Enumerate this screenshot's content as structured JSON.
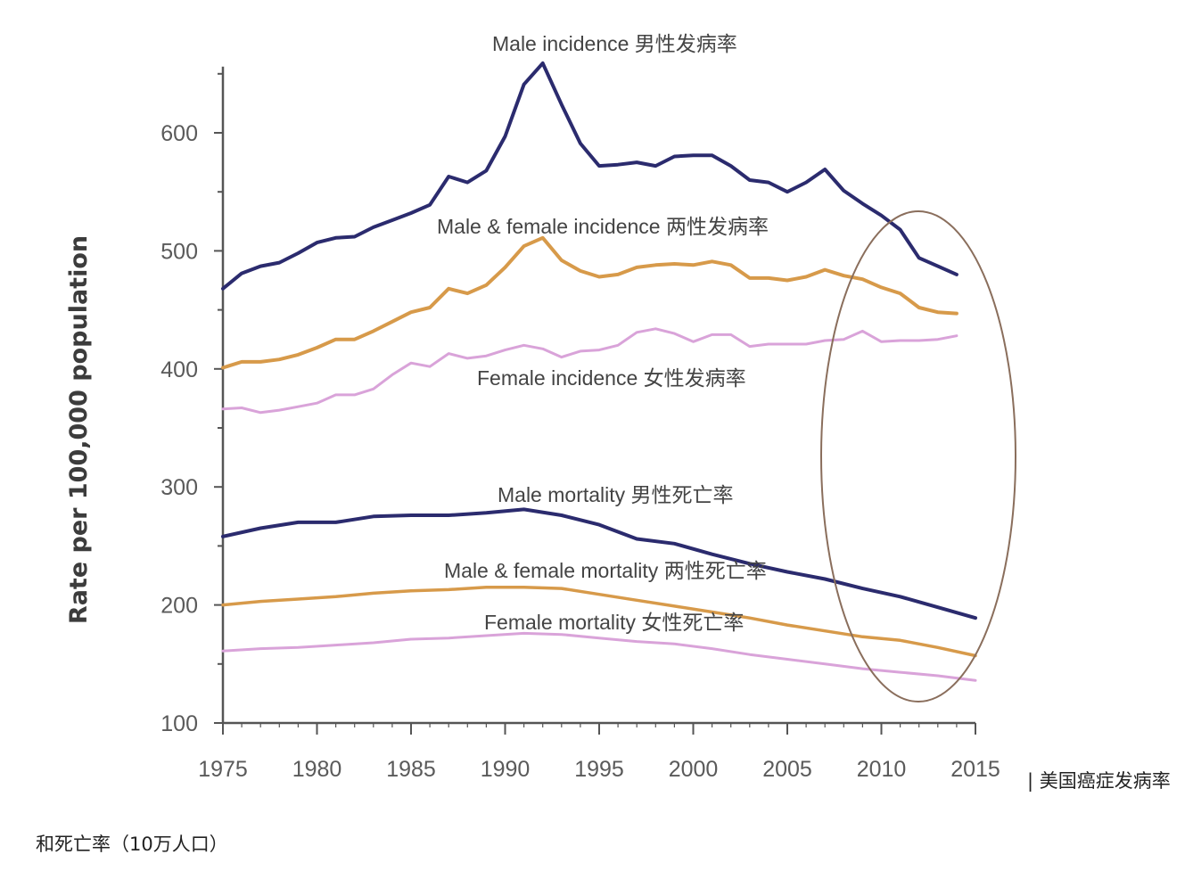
{
  "chart_data": {
    "type": "line",
    "title": "",
    "xlabel": "",
    "ylabel": "Rate per 100,000 population",
    "xlim": [
      1975,
      2015
    ],
    "ylim": [
      100,
      650
    ],
    "x_ticks": [
      "1975",
      "1980",
      "1985",
      "1990",
      "1995",
      "2000",
      "2005",
      "2010",
      "2015"
    ],
    "y_ticks": [
      "100",
      "200",
      "300",
      "400",
      "500",
      "600"
    ],
    "series": [
      {
        "name": "Male incidence 男性发病率",
        "color": "#2b2b6e",
        "x": [
          1975,
          1976,
          1977,
          1978,
          1979,
          1980,
          1981,
          1982,
          1983,
          1984,
          1985,
          1986,
          1987,
          1988,
          1989,
          1990,
          1991,
          1992,
          1993,
          1994,
          1995,
          1996,
          1997,
          1998,
          1999,
          2000,
          2001,
          2002,
          2003,
          2004,
          2005,
          2006,
          2007,
          2008,
          2009,
          2010,
          2011,
          2012,
          2013,
          2014
        ],
        "values": [
          468,
          481,
          487,
          490,
          498,
          507,
          511,
          512,
          520,
          526,
          532,
          539,
          563,
          558,
          568,
          597,
          641,
          659,
          624,
          591,
          572,
          573,
          575,
          572,
          580,
          581,
          581,
          572,
          560,
          558,
          550,
          558,
          569,
          551,
          540,
          530,
          518,
          494,
          487,
          480
        ]
      },
      {
        "name": "Male & female incidence 两性发病率",
        "color": "#d79a4a",
        "x": [
          1975,
          1976,
          1977,
          1978,
          1979,
          1980,
          1981,
          1982,
          1983,
          1984,
          1985,
          1986,
          1987,
          1988,
          1989,
          1990,
          1991,
          1992,
          1993,
          1994,
          1995,
          1996,
          1997,
          1998,
          1999,
          2000,
          2001,
          2002,
          2003,
          2004,
          2005,
          2006,
          2007,
          2008,
          2009,
          2010,
          2011,
          2012,
          2013,
          2014
        ],
        "values": [
          401,
          406,
          406,
          408,
          412,
          418,
          425,
          425,
          432,
          440,
          448,
          452,
          468,
          464,
          471,
          486,
          504,
          511,
          492,
          483,
          478,
          480,
          486,
          488,
          489,
          488,
          491,
          488,
          477,
          477,
          475,
          478,
          484,
          479,
          476,
          469,
          464,
          452,
          448,
          447
        ]
      },
      {
        "name": "Female incidence 女性发病率",
        "color": "#d9a3d9",
        "x": [
          1975,
          1976,
          1977,
          1978,
          1979,
          1980,
          1981,
          1982,
          1983,
          1984,
          1985,
          1986,
          1987,
          1988,
          1989,
          1990,
          1991,
          1992,
          1993,
          1994,
          1995,
          1996,
          1997,
          1998,
          1999,
          2000,
          2001,
          2002,
          2003,
          2004,
          2005,
          2006,
          2007,
          2008,
          2009,
          2010,
          2011,
          2012,
          2013,
          2014
        ],
        "values": [
          366,
          367,
          363,
          365,
          368,
          371,
          378,
          378,
          383,
          395,
          405,
          402,
          413,
          409,
          411,
          416,
          420,
          417,
          410,
          415,
          416,
          420,
          431,
          434,
          430,
          423,
          429,
          429,
          419,
          421,
          421,
          421,
          424,
          425,
          432,
          423,
          424,
          424,
          425,
          428
        ]
      },
      {
        "name": "Male mortality 男性死亡率",
        "color": "#2b2b6e",
        "x": [
          1975,
          1977,
          1979,
          1981,
          1983,
          1985,
          1987,
          1989,
          1991,
          1993,
          1995,
          1997,
          1999,
          2001,
          2003,
          2005,
          2007,
          2009,
          2011,
          2013,
          2015
        ],
        "values": [
          258,
          265,
          270,
          270,
          275,
          276,
          276,
          278,
          281,
          276,
          268,
          256,
          252,
          243,
          235,
          228,
          222,
          214,
          207,
          198,
          189
        ]
      },
      {
        "name": "Male & female mortality 两性死亡率",
        "color": "#d79a4a",
        "x": [
          1975,
          1977,
          1979,
          1981,
          1983,
          1985,
          1987,
          1989,
          1991,
          1993,
          1995,
          1997,
          1999,
          2001,
          2003,
          2005,
          2007,
          2009,
          2011,
          2013,
          2015
        ],
        "values": [
          200,
          203,
          205,
          207,
          210,
          212,
          213,
          215,
          215,
          214,
          209,
          204,
          199,
          194,
          189,
          183,
          178,
          173,
          170,
          164,
          157
        ]
      },
      {
        "name": "Female mortality 女性死亡率",
        "color": "#d9a3d9",
        "x": [
          1975,
          1977,
          1979,
          1981,
          1983,
          1985,
          1987,
          1989,
          1991,
          1993,
          1995,
          1997,
          1999,
          2001,
          2003,
          2005,
          2007,
          2009,
          2011,
          2013,
          2015
        ],
        "values": [
          161,
          163,
          164,
          166,
          168,
          171,
          172,
          174,
          176,
          175,
          172,
          169,
          167,
          163,
          158,
          154,
          150,
          146,
          143,
          140,
          136
        ]
      }
    ],
    "annotations": [
      {
        "type": "ellipse",
        "note": "highlight of 2008–2015 decline"
      }
    ]
  },
  "caption": {
    "right": "| 美国癌症发病率",
    "left": "和死亡率（10万人口）"
  }
}
